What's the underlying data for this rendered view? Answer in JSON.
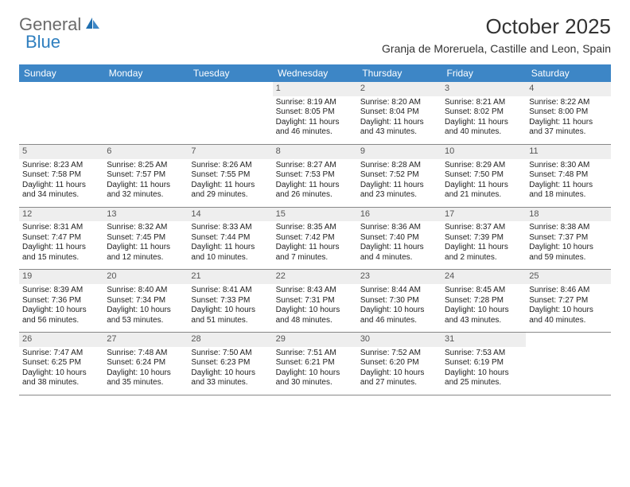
{
  "brand": {
    "part1": "General",
    "part2": "Blue"
  },
  "title": "October 2025",
  "location": "Granja de Moreruela, Castille and Leon, Spain",
  "colors": {
    "header_bg": "#3d86c6",
    "header_text": "#ffffff",
    "daynum_bg": "#eeeeee",
    "border": "#888888",
    "logo_gray": "#6b6b6b",
    "logo_blue": "#2f7fbf"
  },
  "weekdays": [
    "Sunday",
    "Monday",
    "Tuesday",
    "Wednesday",
    "Thursday",
    "Friday",
    "Saturday"
  ],
  "weeks": [
    [
      null,
      null,
      null,
      {
        "n": "1",
        "sr": "8:19 AM",
        "ss": "8:05 PM",
        "dl": "11 hours and 46 minutes."
      },
      {
        "n": "2",
        "sr": "8:20 AM",
        "ss": "8:04 PM",
        "dl": "11 hours and 43 minutes."
      },
      {
        "n": "3",
        "sr": "8:21 AM",
        "ss": "8:02 PM",
        "dl": "11 hours and 40 minutes."
      },
      {
        "n": "4",
        "sr": "8:22 AM",
        "ss": "8:00 PM",
        "dl": "11 hours and 37 minutes."
      }
    ],
    [
      {
        "n": "5",
        "sr": "8:23 AM",
        "ss": "7:58 PM",
        "dl": "11 hours and 34 minutes."
      },
      {
        "n": "6",
        "sr": "8:25 AM",
        "ss": "7:57 PM",
        "dl": "11 hours and 32 minutes."
      },
      {
        "n": "7",
        "sr": "8:26 AM",
        "ss": "7:55 PM",
        "dl": "11 hours and 29 minutes."
      },
      {
        "n": "8",
        "sr": "8:27 AM",
        "ss": "7:53 PM",
        "dl": "11 hours and 26 minutes."
      },
      {
        "n": "9",
        "sr": "8:28 AM",
        "ss": "7:52 PM",
        "dl": "11 hours and 23 minutes."
      },
      {
        "n": "10",
        "sr": "8:29 AM",
        "ss": "7:50 PM",
        "dl": "11 hours and 21 minutes."
      },
      {
        "n": "11",
        "sr": "8:30 AM",
        "ss": "7:48 PM",
        "dl": "11 hours and 18 minutes."
      }
    ],
    [
      {
        "n": "12",
        "sr": "8:31 AM",
        "ss": "7:47 PM",
        "dl": "11 hours and 15 minutes."
      },
      {
        "n": "13",
        "sr": "8:32 AM",
        "ss": "7:45 PM",
        "dl": "11 hours and 12 minutes."
      },
      {
        "n": "14",
        "sr": "8:33 AM",
        "ss": "7:44 PM",
        "dl": "11 hours and 10 minutes."
      },
      {
        "n": "15",
        "sr": "8:35 AM",
        "ss": "7:42 PM",
        "dl": "11 hours and 7 minutes."
      },
      {
        "n": "16",
        "sr": "8:36 AM",
        "ss": "7:40 PM",
        "dl": "11 hours and 4 minutes."
      },
      {
        "n": "17",
        "sr": "8:37 AM",
        "ss": "7:39 PM",
        "dl": "11 hours and 2 minutes."
      },
      {
        "n": "18",
        "sr": "8:38 AM",
        "ss": "7:37 PM",
        "dl": "10 hours and 59 minutes."
      }
    ],
    [
      {
        "n": "19",
        "sr": "8:39 AM",
        "ss": "7:36 PM",
        "dl": "10 hours and 56 minutes."
      },
      {
        "n": "20",
        "sr": "8:40 AM",
        "ss": "7:34 PM",
        "dl": "10 hours and 53 minutes."
      },
      {
        "n": "21",
        "sr": "8:41 AM",
        "ss": "7:33 PM",
        "dl": "10 hours and 51 minutes."
      },
      {
        "n": "22",
        "sr": "8:43 AM",
        "ss": "7:31 PM",
        "dl": "10 hours and 48 minutes."
      },
      {
        "n": "23",
        "sr": "8:44 AM",
        "ss": "7:30 PM",
        "dl": "10 hours and 46 minutes."
      },
      {
        "n": "24",
        "sr": "8:45 AM",
        "ss": "7:28 PM",
        "dl": "10 hours and 43 minutes."
      },
      {
        "n": "25",
        "sr": "8:46 AM",
        "ss": "7:27 PM",
        "dl": "10 hours and 40 minutes."
      }
    ],
    [
      {
        "n": "26",
        "sr": "7:47 AM",
        "ss": "6:25 PM",
        "dl": "10 hours and 38 minutes."
      },
      {
        "n": "27",
        "sr": "7:48 AM",
        "ss": "6:24 PM",
        "dl": "10 hours and 35 minutes."
      },
      {
        "n": "28",
        "sr": "7:50 AM",
        "ss": "6:23 PM",
        "dl": "10 hours and 33 minutes."
      },
      {
        "n": "29",
        "sr": "7:51 AM",
        "ss": "6:21 PM",
        "dl": "10 hours and 30 minutes."
      },
      {
        "n": "30",
        "sr": "7:52 AM",
        "ss": "6:20 PM",
        "dl": "10 hours and 27 minutes."
      },
      {
        "n": "31",
        "sr": "7:53 AM",
        "ss": "6:19 PM",
        "dl": "10 hours and 25 minutes."
      },
      null
    ]
  ],
  "labels": {
    "sunrise": "Sunrise:",
    "sunset": "Sunset:",
    "daylight": "Daylight:"
  }
}
